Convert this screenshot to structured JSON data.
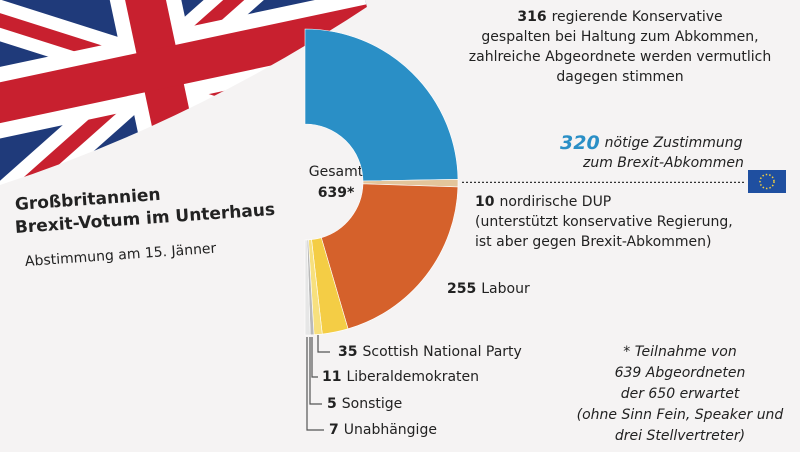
{
  "chart_data": {
    "type": "pie",
    "title_lines": [
      "Großbritannien",
      "Brexit-Votum im Unterhaus"
    ],
    "subtitle": "Abstimmung am 15. Jänner",
    "center_label": "Gesamt",
    "total_label": "639*",
    "categories": [
      "regierende Konservative",
      "nordirische DUP",
      "Labour",
      "Scottish National Party",
      "Liberaldemokraten",
      "Sonstige",
      "Unabhängige"
    ],
    "values": [
      316,
      10,
      255,
      35,
      11,
      5,
      7
    ],
    "colors": [
      "#2a8fc6",
      "#e3c59b",
      "#d5612b",
      "#f4cd45",
      "#f7e07e",
      "#b9b9b9",
      "#e6e6e6"
    ],
    "details": [
      [
        "gespalten bei Haltung zum Abkommen,",
        "zahlreiche Abgeordnete werden vermutlich",
        "dagegen stimmen"
      ],
      [
        "(unterstützt konservative Regierung,",
        "ist aber gegen Brexit-Abkommen)"
      ],
      null,
      null,
      null,
      null,
      null
    ],
    "threshold": {
      "value": 320,
      "lines": [
        "nötige Zustimmung",
        "zum Brexit-Abkommen"
      ]
    },
    "footnote": [
      "* Teilnahme von",
      "639 Abgeordneten",
      "der 650 erwartet",
      "(ohne Sinn Fein, Speaker und",
      "drei Stellvertreter)"
    ]
  }
}
